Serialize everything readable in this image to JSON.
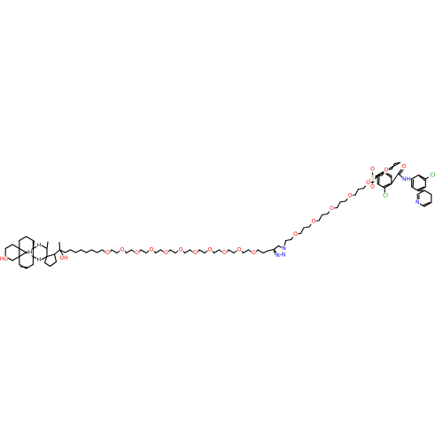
{
  "diagram": {
    "kind": "chemical-structure",
    "colors": {
      "bond": "#000000",
      "oxygen": "#ff0000",
      "nitrogen": "#0000ff",
      "sulfur": "#c8a000",
      "chlorine": "#00aa00",
      "carbon_label": "#000000"
    },
    "atom_labels": {
      "sterol_hydroxyl": "HO",
      "sterol_h1": "H",
      "sterol_h2": "H",
      "sterol_h3": "H",
      "side_chain_hydroxyl": "OH",
      "peg_o1": "O",
      "peg_o2": "O",
      "peg_o3": "O",
      "peg_o4": "O",
      "peg_o5": "O",
      "peg_o6": "O",
      "peg_o7": "O",
      "peg_o8": "O",
      "peg_o9": "O",
      "peg_o10": "O",
      "peg_o11": "O",
      "triazole_n1": "N",
      "triazole_n2": "N",
      "triazole_n3": "N",
      "peg2_o1": "O",
      "peg2_o2": "O",
      "peg2_o3": "O",
      "peg2_o4": "O",
      "peg2_o5": "O",
      "peg2_o6": "O",
      "sulfonyl_s": "S",
      "sulfonyl_o1": "O",
      "sulfonyl_o2": "O",
      "amide_o": "O",
      "amide_nh": "NH",
      "aryl_cl1": "Cl",
      "aryl_cl2": "Cl",
      "pyridine_n": "N"
    }
  }
}
